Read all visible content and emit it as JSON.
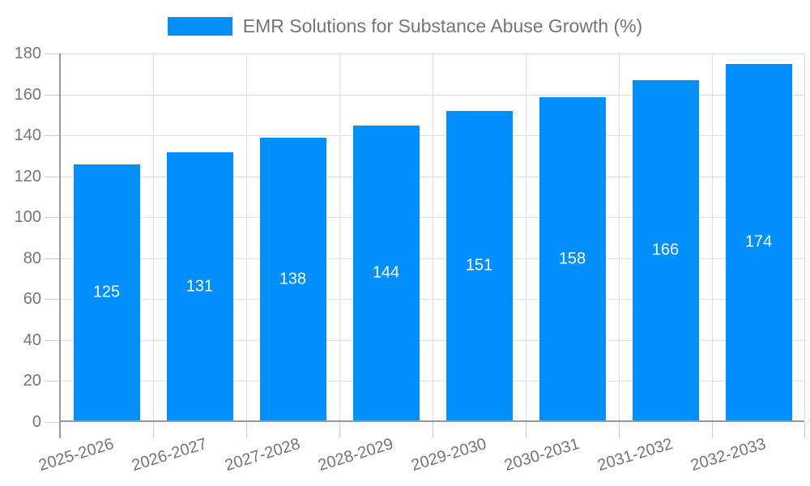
{
  "chart_data": {
    "type": "bar",
    "title": "EMR Solutions for Substance Abuse Growth (%)",
    "legend_entries": [
      "EMR Solutions for Substance Abuse Growth (%)"
    ],
    "legend_position": "top",
    "categories": [
      "2025-2026",
      "2026-2027",
      "2027-2028",
      "2028-2029",
      "2029-2030",
      "2030-2031",
      "2031-2032",
      "2032-2033"
    ],
    "series": [
      {
        "name": "EMR Solutions for Substance Abuse Growth (%)",
        "values": [
          125,
          131,
          138,
          144,
          151,
          158,
          166,
          174
        ]
      }
    ],
    "value_labels": [
      "125",
      "131",
      "138",
      "144",
      "151",
      "158",
      "166",
      "174"
    ],
    "xlabel": "",
    "ylabel": "",
    "ylim": [
      0,
      180
    ],
    "yticks": [
      0,
      20,
      40,
      60,
      80,
      100,
      120,
      140,
      160,
      180
    ],
    "grid": true,
    "colors": {
      "bar": "#008FFB",
      "value_label_text": "#ffffff",
      "axis_text": "#757575",
      "legend_text": "#757575",
      "gridline": "#e0e0e0",
      "axis_line": "#999999",
      "tick_mark": "#cccccc"
    }
  }
}
